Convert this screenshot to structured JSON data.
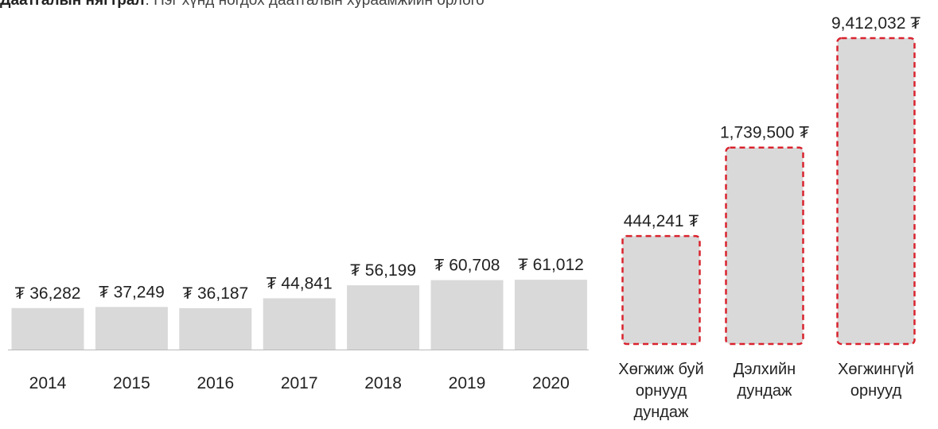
{
  "header": {
    "title": "Даатгалын нягтрал",
    "subtitle": ": Нэг хүнд ногдох даатгалын хураамжийн орлого"
  },
  "chart_data": [
    {
      "type": "bar",
      "categories": [
        "2014",
        "2015",
        "2016",
        "2017",
        "2018",
        "2019",
        "2020"
      ],
      "values": [
        36282,
        37249,
        36187,
        44841,
        56199,
        60708,
        61012
      ],
      "value_labels": [
        "₮ 36,282",
        "₮ 37,249",
        "₮ 36,187",
        "₮ 44,841",
        "₮ 56,199",
        "₮ 60,708",
        "₮ 61,012"
      ],
      "color": "#d9d9d9",
      "ylim": [
        0,
        100000
      ]
    },
    {
      "type": "bar",
      "categories": [
        "Хөгжиж буй орнууд дундаж",
        "Дэлхийн дундаж",
        "Хөгжингүй орнууд"
      ],
      "values": [
        444241,
        1739500,
        9412032
      ],
      "value_labels": [
        "444,241 ₮",
        "1,739,500 ₮",
        "9,412,032 ₮"
      ],
      "color": "#d9d9d9",
      "outline_color": "#d9232e",
      "log_scale": true,
      "ylim": [
        84000,
        10000000
      ]
    }
  ]
}
